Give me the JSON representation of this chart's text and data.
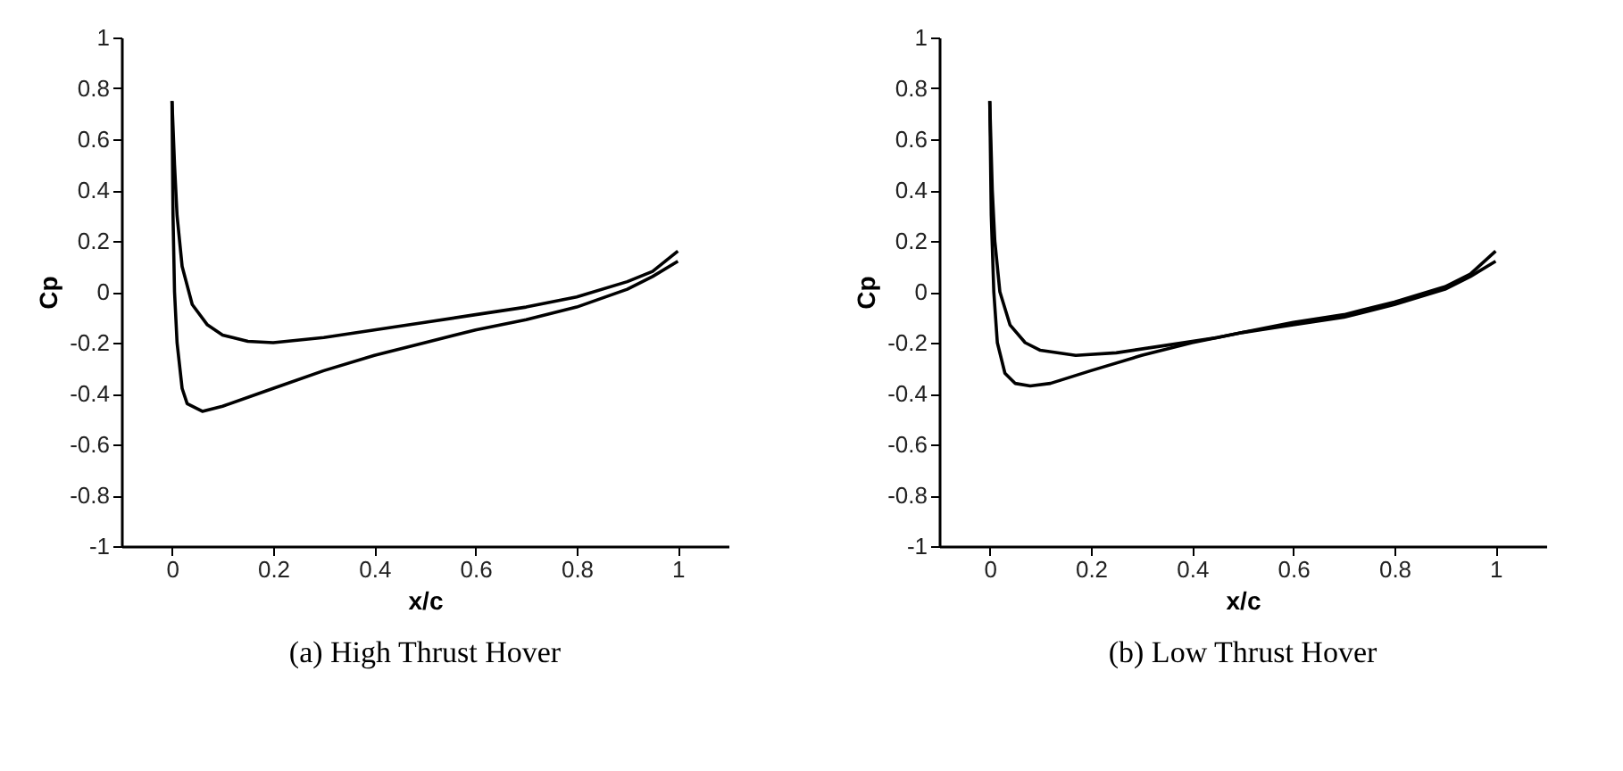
{
  "chart_data": [
    {
      "type": "line",
      "title": "(a) High Thrust Hover",
      "xlabel": "x/c",
      "ylabel": "Cp",
      "xlim": [
        -0.1,
        1.1
      ],
      "ylim": [
        -1,
        1
      ],
      "xticks": [
        0,
        0.2,
        0.4,
        0.6,
        0.8,
        1
      ],
      "yticks": [
        -1,
        -0.8,
        -0.6,
        -0.4,
        -0.2,
        0,
        0.2,
        0.4,
        0.6,
        0.8,
        1
      ],
      "grid": false,
      "legend": false,
      "marker": "none",
      "line_style": "solid",
      "series": [
        {
          "color": "#000000",
          "x": [
            0,
            0.005,
            0.01,
            0.02,
            0.04,
            0.07,
            0.1,
            0.15,
            0.2,
            0.3,
            0.4,
            0.5,
            0.6,
            0.7,
            0.8,
            0.9,
            0.95,
            1.0
          ],
          "values": [
            0.75,
            0.5,
            0.3,
            0.1,
            -0.05,
            -0.13,
            -0.17,
            -0.195,
            -0.2,
            -0.18,
            -0.15,
            -0.12,
            -0.09,
            -0.06,
            -0.02,
            0.04,
            0.08,
            0.16
          ]
        },
        {
          "color": "#000000",
          "x": [
            0,
            0.002,
            0.005,
            0.01,
            0.02,
            0.03,
            0.06,
            0.1,
            0.2,
            0.3,
            0.4,
            0.5,
            0.6,
            0.7,
            0.8,
            0.9,
            0.95,
            1.0
          ],
          "values": [
            0.75,
            0.3,
            0.0,
            -0.2,
            -0.38,
            -0.44,
            -0.47,
            -0.45,
            -0.38,
            -0.31,
            -0.25,
            -0.2,
            -0.15,
            -0.11,
            -0.06,
            0.01,
            0.06,
            0.12
          ]
        }
      ]
    },
    {
      "type": "line",
      "title": "(b) Low Thrust Hover",
      "xlabel": "x/c",
      "ylabel": "Cp",
      "xlim": [
        -0.1,
        1.1
      ],
      "ylim": [
        -1,
        1
      ],
      "xticks": [
        0,
        0.2,
        0.4,
        0.6,
        0.8,
        1
      ],
      "yticks": [
        -1,
        -0.8,
        -0.6,
        -0.4,
        -0.2,
        0,
        0.2,
        0.4,
        0.6,
        0.8,
        1
      ],
      "grid": false,
      "legend": false,
      "marker": "none",
      "line_style": "solid",
      "series": [
        {
          "color": "#000000",
          "x": [
            0,
            0.005,
            0.01,
            0.02,
            0.04,
            0.07,
            0.1,
            0.17,
            0.25,
            0.35,
            0.45,
            0.5,
            0.6,
            0.7,
            0.8,
            0.9,
            0.95,
            1.0
          ],
          "values": [
            0.75,
            0.4,
            0.2,
            0.0,
            -0.13,
            -0.2,
            -0.23,
            -0.25,
            -0.24,
            -0.21,
            -0.18,
            -0.16,
            -0.12,
            -0.09,
            -0.04,
            0.02,
            0.07,
            0.16
          ]
        },
        {
          "color": "#000000",
          "x": [
            0,
            0.003,
            0.008,
            0.015,
            0.03,
            0.05,
            0.08,
            0.12,
            0.2,
            0.3,
            0.4,
            0.5,
            0.6,
            0.7,
            0.8,
            0.9,
            0.95,
            1.0
          ],
          "values": [
            0.75,
            0.3,
            0.0,
            -0.2,
            -0.32,
            -0.36,
            -0.37,
            -0.36,
            -0.31,
            -0.25,
            -0.2,
            -0.16,
            -0.13,
            -0.1,
            -0.05,
            0.01,
            0.06,
            0.12
          ]
        }
      ]
    }
  ]
}
